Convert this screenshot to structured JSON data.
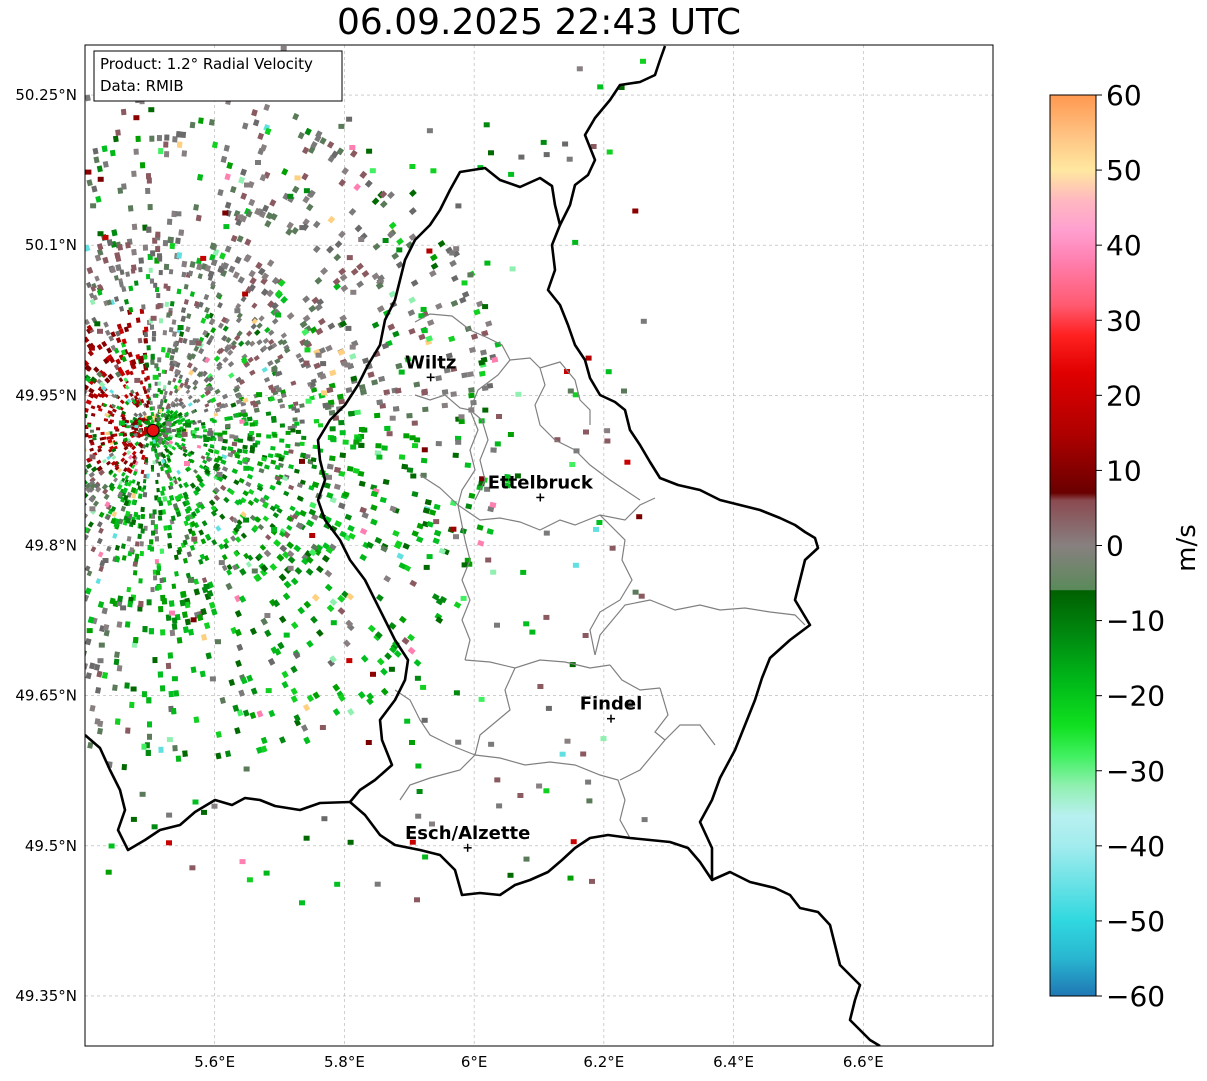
{
  "title": "06.09.2025 22:43 UTC",
  "info_box": {
    "product": "Product: 1.2° Radial Velocity",
    "data": "Data: RMIB"
  },
  "axes": {
    "lon_range": [
      5.4,
      6.8
    ],
    "lat_range": [
      49.3,
      50.3
    ],
    "lon_ticks": [
      {
        "value": 5.6,
        "label": "5.6°E"
      },
      {
        "value": 5.8,
        "label": "5.8°E"
      },
      {
        "value": 6.0,
        "label": "6°E"
      },
      {
        "value": 6.2,
        "label": "6.2°E"
      },
      {
        "value": 6.4,
        "label": "6.4°E"
      },
      {
        "value": 6.6,
        "label": "6.6°E"
      }
    ],
    "lat_ticks": [
      {
        "value": 50.25,
        "label": "50.25°N"
      },
      {
        "value": 50.1,
        "label": "50.1°N"
      },
      {
        "value": 49.95,
        "label": "49.95°N"
      },
      {
        "value": 49.8,
        "label": "49.8°N"
      },
      {
        "value": 49.65,
        "label": "49.65°N"
      },
      {
        "value": 49.5,
        "label": "49.5°N"
      },
      {
        "value": 49.35,
        "label": "49.35°N"
      }
    ]
  },
  "radar_site": {
    "lon": 5.505,
    "lat": 49.915
  },
  "cities": [
    {
      "name": "Wiltz",
      "lon": 5.933,
      "lat": 49.968
    },
    {
      "name": "Ettelbruck",
      "lon": 6.102,
      "lat": 49.848
    },
    {
      "name": "Findel",
      "lon": 6.211,
      "lat": 49.627
    },
    {
      "name": "Esch/Alzette",
      "lon": 5.99,
      "lat": 49.498
    }
  ],
  "colorbar": {
    "label": "m/s",
    "min": -60,
    "max": 60,
    "ticks": [
      {
        "value": 60,
        "label": "60"
      },
      {
        "value": 50,
        "label": "50"
      },
      {
        "value": 40,
        "label": "40"
      },
      {
        "value": 30,
        "label": "30"
      },
      {
        "value": 20,
        "label": "20"
      },
      {
        "value": 10,
        "label": "10"
      },
      {
        "value": 0,
        "label": "0"
      },
      {
        "value": -10,
        "label": "−10"
      },
      {
        "value": -20,
        "label": "−20"
      },
      {
        "value": -30,
        "label": "−30"
      },
      {
        "value": -40,
        "label": "−40"
      },
      {
        "value": -50,
        "label": "−50"
      },
      {
        "value": -60,
        "label": "−60"
      }
    ],
    "stops": [
      {
        "v": -60,
        "color": "#1f77b4"
      },
      {
        "v": -55,
        "color": "#29b6d0"
      },
      {
        "v": -50,
        "color": "#30d8e0"
      },
      {
        "v": -45,
        "color": "#6ae2e6"
      },
      {
        "v": -40,
        "color": "#a2ecee"
      },
      {
        "v": -36,
        "color": "#b8f0f0"
      },
      {
        "v": -32,
        "color": "#90f0b0"
      },
      {
        "v": -28,
        "color": "#40f060"
      },
      {
        "v": -24,
        "color": "#10e020"
      },
      {
        "v": -18,
        "color": "#00b818"
      },
      {
        "v": -12,
        "color": "#008a10"
      },
      {
        "v": -6,
        "color": "#006000"
      },
      {
        "v": -5.9,
        "color": "#5a8a5a"
      },
      {
        "v": 0,
        "color": "#888080"
      },
      {
        "v": 6,
        "color": "#8a4a50"
      },
      {
        "v": 7,
        "color": "#6a0000"
      },
      {
        "v": 15,
        "color": "#b00000"
      },
      {
        "v": 23,
        "color": "#e00000"
      },
      {
        "v": 28,
        "color": "#ff2020"
      },
      {
        "v": 32,
        "color": "#ff5a70"
      },
      {
        "v": 38,
        "color": "#ff80b0"
      },
      {
        "v": 42,
        "color": "#ffa0d0"
      },
      {
        "v": 46,
        "color": "#ffb8c0"
      },
      {
        "v": 50,
        "color": "#ffe8a0"
      },
      {
        "v": 55,
        "color": "#ffc080"
      },
      {
        "v": 60,
        "color": "#ff9850"
      }
    ]
  },
  "colors": {
    "border": "#000000",
    "canton": "#808080",
    "grid": "#b0b0b0",
    "radar_dot": "#e81010"
  }
}
